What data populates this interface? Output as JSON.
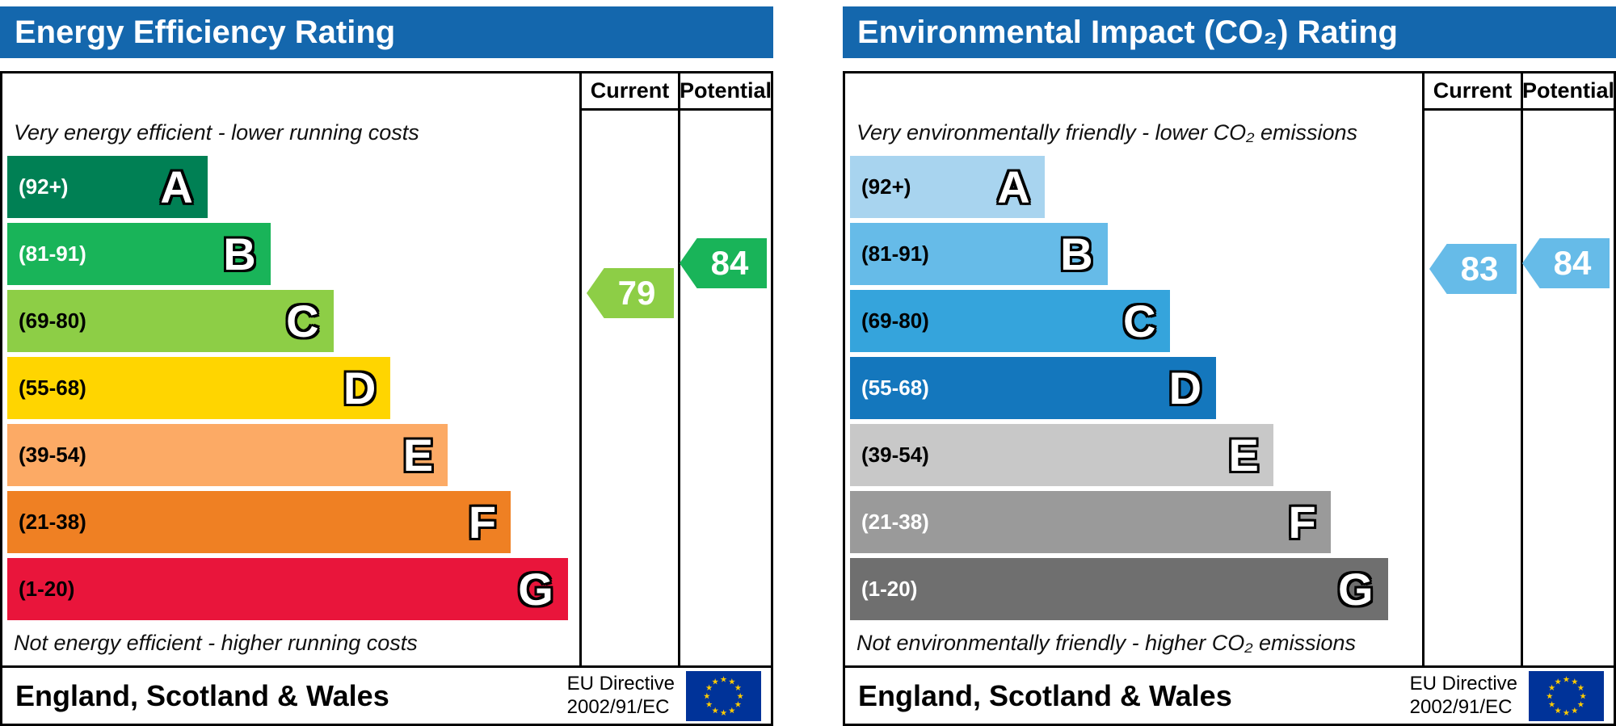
{
  "colors": {
    "header_bg": "#1467ad",
    "header_text": "#ffffff",
    "border": "#000000",
    "page_bg": "#ffffff",
    "eu_flag_blue": "#003399",
    "eu_flag_star": "#ffcc00"
  },
  "panels": [
    {
      "title": "Energy Efficiency Rating",
      "columns": {
        "current": "Current",
        "potential": "Potential"
      },
      "top_caption": "Very energy efficient - lower running costs",
      "bottom_caption": "Not energy efficient - higher running costs",
      "bands": [
        {
          "letter": "A",
          "range": "(92+)",
          "range_min": 92,
          "range_max": 100,
          "color": "#008054",
          "text_color": "#ffffff",
          "width_pct": 35
        },
        {
          "letter": "B",
          "range": "(81-91)",
          "range_min": 81,
          "range_max": 91,
          "color": "#19b459",
          "text_color": "#ffffff",
          "width_pct": 46
        },
        {
          "letter": "C",
          "range": "(69-80)",
          "range_min": 69,
          "range_max": 80,
          "color": "#8dce46",
          "text_color": "#000000",
          "width_pct": 57
        },
        {
          "letter": "D",
          "range": "(55-68)",
          "range_min": 55,
          "range_max": 68,
          "color": "#ffd500",
          "text_color": "#000000",
          "width_pct": 67
        },
        {
          "letter": "E",
          "range": "(39-54)",
          "range_min": 39,
          "range_max": 54,
          "color": "#fcaa65",
          "text_color": "#000000",
          "width_pct": 77
        },
        {
          "letter": "F",
          "range": "(21-38)",
          "range_min": 21,
          "range_max": 38,
          "color": "#ef8023",
          "text_color": "#000000",
          "width_pct": 88
        },
        {
          "letter": "G",
          "range": "(1-20)",
          "range_min": 1,
          "range_max": 20,
          "color": "#e9153b",
          "text_color": "#000000",
          "width_pct": 98
        }
      ],
      "current": {
        "value": "79",
        "band_index": 2,
        "color": "#8dce46"
      },
      "potential": {
        "value": "84",
        "band_index": 1,
        "color": "#19b459"
      },
      "footer": {
        "region": "England, Scotland & Wales",
        "directive_line1": "EU Directive",
        "directive_line2": "2002/91/EC"
      }
    },
    {
      "title": "Environmental Impact (CO₂) Rating",
      "columns": {
        "current": "Current",
        "potential": "Potential"
      },
      "top_caption": "Very environmentally friendly - lower CO₂ emissions",
      "bottom_caption": "Not environmentally friendly - higher CO₂ emissions",
      "bands": [
        {
          "letter": "A",
          "range": "(92+)",
          "range_min": 92,
          "range_max": 100,
          "color": "#a8d4ef",
          "text_color": "#000000",
          "width_pct": 34
        },
        {
          "letter": "B",
          "range": "(81-91)",
          "range_min": 81,
          "range_max": 91,
          "color": "#66bbe8",
          "text_color": "#000000",
          "width_pct": 45
        },
        {
          "letter": "C",
          "range": "(69-80)",
          "range_min": 69,
          "range_max": 80,
          "color": "#35a4dc",
          "text_color": "#000000",
          "width_pct": 56
        },
        {
          "letter": "D",
          "range": "(55-68)",
          "range_min": 55,
          "range_max": 68,
          "color": "#1477bd",
          "text_color": "#ffffff",
          "width_pct": 64
        },
        {
          "letter": "E",
          "range": "(39-54)",
          "range_min": 39,
          "range_max": 54,
          "color": "#c8c8c8",
          "text_color": "#000000",
          "width_pct": 74
        },
        {
          "letter": "F",
          "range": "(21-38)",
          "range_min": 21,
          "range_max": 38,
          "color": "#9a9a9a",
          "text_color": "#ffffff",
          "width_pct": 84
        },
        {
          "letter": "G",
          "range": "(1-20)",
          "range_min": 1,
          "range_max": 20,
          "color": "#6f6f6f",
          "text_color": "#ffffff",
          "width_pct": 94
        }
      ],
      "current": {
        "value": "83",
        "band_index": 1,
        "color": "#66bbe8"
      },
      "potential": {
        "value": "84",
        "band_index": 1,
        "color": "#66bbe8"
      },
      "footer": {
        "region": "England, Scotland & Wales",
        "directive_line1": "EU Directive",
        "directive_line2": "2002/91/EC"
      }
    }
  ],
  "chart_data": [
    {
      "type": "bar",
      "title": "Energy Efficiency Rating",
      "categories": [
        "A (92+)",
        "B (81-91)",
        "C (69-80)",
        "D (55-68)",
        "E (39-54)",
        "F (21-38)",
        "G (1-20)"
      ],
      "values": [
        35,
        46,
        57,
        67,
        77,
        88,
        98
      ],
      "current_rating": 79,
      "current_band": "C",
      "potential_rating": 84,
      "potential_band": "B",
      "top_caption": "Very energy efficient - lower running costs",
      "bottom_caption": "Not energy efficient - higher running costs",
      "footer": "England, Scotland & Wales",
      "directive": "EU Directive 2002/91/EC"
    },
    {
      "type": "bar",
      "title": "Environmental Impact (CO₂) Rating",
      "categories": [
        "A (92+)",
        "B (81-91)",
        "C (69-80)",
        "D (55-68)",
        "E (39-54)",
        "F (21-38)",
        "G (1-20)"
      ],
      "values": [
        34,
        45,
        56,
        64,
        74,
        84,
        94
      ],
      "current_rating": 83,
      "current_band": "B",
      "potential_rating": 84,
      "potential_band": "B",
      "top_caption": "Very environmentally friendly - lower CO₂ emissions",
      "bottom_caption": "Not environmentally friendly - higher CO₂ emissions",
      "footer": "England, Scotland & Wales",
      "directive": "EU Directive 2002/91/EC"
    }
  ]
}
